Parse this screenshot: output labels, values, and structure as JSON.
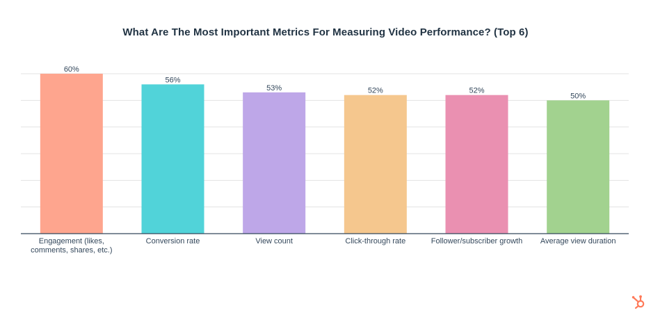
{
  "title": "What Are The Most Important Metrics For Measuring Video Performance? (Top 6)",
  "chart_data": {
    "type": "bar",
    "title": "What Are The Most Important Metrics For Measuring Video Performance? (Top 6)",
    "categories": [
      [
        "Engagement (likes,",
        "comments, shares, etc.)"
      ],
      [
        "Conversion rate"
      ],
      [
        "View count"
      ],
      [
        "Click-through rate"
      ],
      [
        "Follower/subscriber growth"
      ],
      [
        "Average view duration"
      ]
    ],
    "values": [
      60,
      56,
      53,
      52,
      52,
      50
    ],
    "data_labels": [
      "60%",
      "56%",
      "53%",
      "52%",
      "52%",
      "50%"
    ],
    "colors": [
      "#fea58e",
      "#51d3d9",
      "#bea7e8",
      "#f5c78e",
      "#ea90b1",
      "#a2d28f"
    ],
    "xlabel": "",
    "ylabel": "",
    "ylim": [
      0,
      60
    ],
    "grid": true,
    "legend": "none"
  },
  "colors": {
    "title": "#213343",
    "gridline": "#e3e3e3",
    "axis": "#33475b",
    "logo": "#ff7a59"
  },
  "logo_icon": "hubspot-sprocket-icon"
}
